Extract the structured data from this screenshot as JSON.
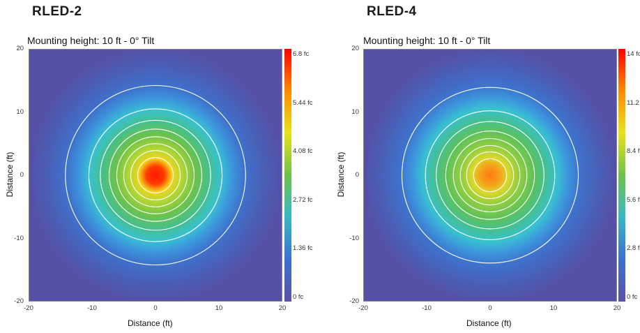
{
  "chart_data": [
    {
      "type": "heatmap",
      "panel_title": "RLED-2",
      "title": "Mounting height: 10 ft - 0° Tilt",
      "xlabel": "Distance (ft)",
      "ylabel": "Distance (ft)",
      "xlim": [
        -20,
        20
      ],
      "ylim": [
        -20,
        20
      ],
      "x_ticks": [
        "-20",
        "-10",
        "0",
        "10",
        "20"
      ],
      "y_ticks": [
        "20",
        "10",
        "0",
        "-10",
        "-20"
      ],
      "colorbar": {
        "min": 0,
        "max": 6.8,
        "unit": "fc",
        "tick_labels": [
          "6.8 fc",
          "5.44 fc",
          "4.08 fc",
          "2.72 fc",
          "1.36 fc",
          "0 fc"
        ],
        "colors": [
          "#ff0000",
          "#ff8a00",
          "#e8e21a",
          "#6cc24a",
          "#38b8c8",
          "#3a6fd0",
          "#5a52a8"
        ]
      },
      "peak_value": 6.8,
      "contour_radii_ft": [
        14.2,
        10.5,
        8.7,
        7.3,
        6.1,
        5.0,
        3.9,
        2.8
      ],
      "grid": false
    },
    {
      "type": "heatmap",
      "panel_title": "RLED-4",
      "title": "Mounting height: 10 ft - 0° Tilt",
      "xlabel": "Distance (ft)",
      "ylabel": "Distance (ft)",
      "xlim": [
        -20,
        20
      ],
      "ylim": [
        -20,
        20
      ],
      "x_ticks": [
        "-20",
        "-10",
        "0",
        "10",
        "20"
      ],
      "y_ticks": [
        "20",
        "10",
        "0",
        "-10",
        "-20"
      ],
      "colorbar": {
        "min": 0,
        "max": 14,
        "unit": "fc",
        "tick_labels": [
          "14 fc",
          "11.2 fc",
          "8.4 fc",
          "5.6 fc",
          "2.8 fc",
          "0 fc"
        ],
        "colors": [
          "#ff0000",
          "#ff8a00",
          "#e8e21a",
          "#6cc24a",
          "#38b8c8",
          "#3a6fd0",
          "#5a52a8"
        ]
      },
      "peak_value": 10.5,
      "contour_radii_ft": [
        13.9,
        10.2,
        8.5,
        7.0,
        5.8,
        4.7,
        3.7,
        2.6
      ],
      "grid": false
    }
  ]
}
